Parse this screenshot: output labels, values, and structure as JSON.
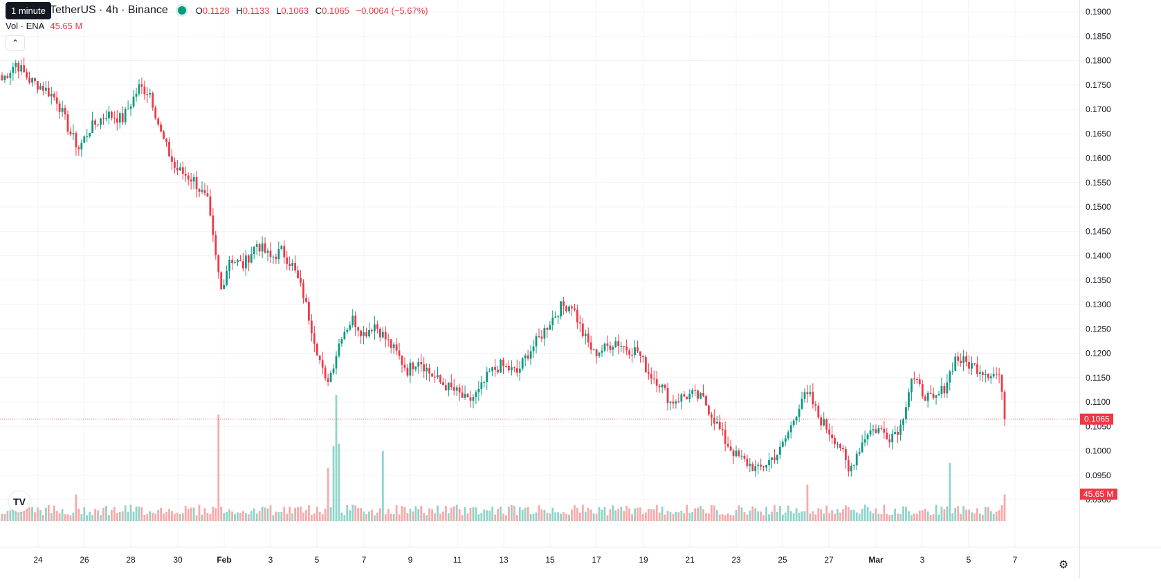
{
  "header": {
    "symbol": "TetherUS · 4h · Binance",
    "tooltip": "1 minute",
    "ohlc": {
      "open_label": "O",
      "open": "0.1128",
      "high_label": "H",
      "high": "0.1133",
      "low_label": "L",
      "low": "0.1063",
      "close_label": "C",
      "close": "0.1065",
      "change": "−0.0064 (−5.67%)"
    },
    "volume_label": "Vol · ENA",
    "volume_value": "45.65 M",
    "collapse_icon": "chevron-up-icon"
  },
  "colors": {
    "up": "#089981",
    "down": "#f23645",
    "up_vol": "#8fd3c9",
    "down_vol": "#f7a9a9",
    "grid": "#f0f3fa"
  },
  "price_label": "0.1065",
  "volume_label_badge": "45.65 M",
  "chart_data": {
    "type": "candlestick",
    "y_ticks": [
      "0.1900",
      "0.1850",
      "0.1800",
      "0.1750",
      "0.1700",
      "0.1650",
      "0.1600",
      "0.1550",
      "0.1500",
      "0.1450",
      "0.1400",
      "0.1350",
      "0.1300",
      "0.1250",
      "0.1200",
      "0.1150",
      "0.1100",
      "0.1050",
      "0.1000",
      "0.0950",
      "0.0900"
    ],
    "ylim": [
      0.09,
      0.19
    ],
    "x_ticks": [
      "24",
      "26",
      "28",
      "30",
      "Feb",
      "3",
      "5",
      "7",
      "9",
      "11",
      "13",
      "15",
      "17",
      "19",
      "21",
      "23",
      "25",
      "27",
      "Mar",
      "3",
      "5",
      "7"
    ],
    "anchors": [
      [
        0,
        0.176
      ],
      [
        5,
        0.1795
      ],
      [
        10,
        0.176
      ],
      [
        15,
        0.1745
      ],
      [
        20,
        0.172
      ],
      [
        25,
        0.165
      ],
      [
        28,
        0.162
      ],
      [
        32,
        0.166
      ],
      [
        38,
        0.169
      ],
      [
        44,
        0.168
      ],
      [
        50,
        0.1745
      ],
      [
        54,
        0.1735
      ],
      [
        58,
        0.165
      ],
      [
        63,
        0.158
      ],
      [
        70,
        0.1555
      ],
      [
        75,
        0.151
      ],
      [
        78,
        0.1395
      ],
      [
        80,
        0.133
      ],
      [
        83,
        0.1395
      ],
      [
        88,
        0.138
      ],
      [
        93,
        0.1425
      ],
      [
        98,
        0.1395
      ],
      [
        102,
        0.141
      ],
      [
        106,
        0.138
      ],
      [
        110,
        0.132
      ],
      [
        114,
        0.123
      ],
      [
        118,
        0.114
      ],
      [
        120,
        0.116
      ],
      [
        124,
        0.124
      ],
      [
        128,
        0.127
      ],
      [
        132,
        0.124
      ],
      [
        136,
        0.126
      ],
      [
        140,
        0.123
      ],
      [
        144,
        0.12
      ],
      [
        148,
        0.1165
      ],
      [
        152,
        0.119
      ],
      [
        156,
        0.116
      ],
      [
        160,
        0.114
      ],
      [
        166,
        0.112
      ],
      [
        170,
        0.11
      ],
      [
        174,
        0.112
      ],
      [
        178,
        0.116
      ],
      [
        182,
        0.1175
      ],
      [
        188,
        0.116
      ],
      [
        192,
        0.12
      ],
      [
        196,
        0.123
      ],
      [
        200,
        0.1265
      ],
      [
        204,
        0.1295
      ],
      [
        208,
        0.13
      ],
      [
        212,
        0.124
      ],
      [
        216,
        0.12
      ],
      [
        220,
        0.121
      ],
      [
        224,
        0.1225
      ],
      [
        228,
        0.121
      ],
      [
        232,
        0.1205
      ],
      [
        236,
        0.116
      ],
      [
        240,
        0.114
      ],
      [
        244,
        0.11
      ],
      [
        248,
        0.111
      ],
      [
        252,
        0.1115
      ],
      [
        256,
        0.1105
      ],
      [
        260,
        0.1065
      ],
      [
        264,
        0.102
      ],
      [
        268,
        0.099
      ],
      [
        272,
        0.0975
      ],
      [
        276,
        0.096
      ],
      [
        280,
        0.098
      ],
      [
        284,
        0.1
      ],
      [
        288,
        0.105
      ],
      [
        292,
        0.111
      ],
      [
        295,
        0.111
      ],
      [
        298,
        0.107
      ],
      [
        302,
        0.104
      ],
      [
        306,
        0.101
      ],
      [
        309,
        0.0955
      ],
      [
        312,
        0.0995
      ],
      [
        316,
        0.104
      ],
      [
        320,
        0.1045
      ],
      [
        324,
        0.103
      ],
      [
        328,
        0.105
      ],
      [
        332,
        0.115
      ],
      [
        336,
        0.112
      ],
      [
        340,
        0.11
      ],
      [
        344,
        0.113
      ],
      [
        348,
        0.119
      ],
      [
        352,
        0.118
      ],
      [
        356,
        0.117
      ],
      [
        360,
        0.116
      ],
      [
        364,
        0.1155
      ],
      [
        366,
        0.1065
      ]
    ],
    "volume_spikes": [
      [
        27,
        0.55
      ],
      [
        79,
        2.2
      ],
      [
        121,
        1.55
      ],
      [
        122,
        2.6
      ],
      [
        123,
        1.6
      ],
      [
        119,
        1.1
      ],
      [
        139,
        1.45
      ],
      [
        346,
        1.2
      ],
      [
        294,
        0.75
      ],
      [
        366,
        0.55
      ]
    ]
  }
}
